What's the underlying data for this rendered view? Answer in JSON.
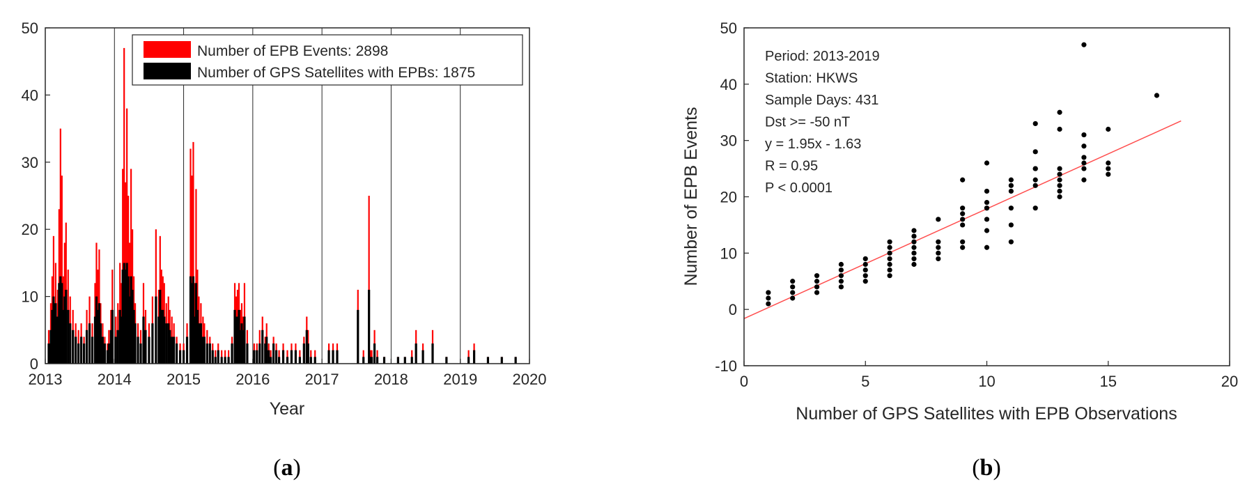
{
  "panels": [
    {
      "label_open": "(",
      "label_letter": "a",
      "label_close": ")"
    },
    {
      "label_open": "(",
      "label_letter": "b",
      "label_close": ")"
    }
  ],
  "chart_data": [
    {
      "type": "bar",
      "panel": "a",
      "title": "",
      "xlabel": "Year",
      "ylabel": "",
      "xlim": [
        2013,
        2020
      ],
      "ylim": [
        0,
        50
      ],
      "xticks": [
        2013,
        2014,
        2015,
        2016,
        2017,
        2018,
        2019,
        2020
      ],
      "yticks": [
        0,
        10,
        20,
        30,
        40,
        50
      ],
      "year_dividers": [
        2014,
        2015,
        2016,
        2017,
        2018,
        2019
      ],
      "legend": {
        "placement": "top-right",
        "entries": [
          {
            "name": "Number of EPB Events: 2898",
            "color": "#ff0000"
          },
          {
            "name": "Number of GPS Satellites with EPBs: 1875",
            "color": "#000000"
          }
        ]
      },
      "series": [
        {
          "name": "Number of EPB Events",
          "color": "#ff0000",
          "x": [
            2013.05,
            2013.08,
            2013.1,
            2013.12,
            2013.15,
            2013.18,
            2013.2,
            2013.22,
            2013.24,
            2013.26,
            2013.28,
            2013.3,
            2013.33,
            2013.36,
            2013.4,
            2013.44,
            2013.48,
            2013.52,
            2013.56,
            2013.6,
            2013.64,
            2013.68,
            2013.72,
            2013.74,
            2013.76,
            2013.78,
            2013.8,
            2013.83,
            2013.86,
            2013.9,
            2013.92,
            2013.95,
            2013.97,
            2014.02,
            2014.05,
            2014.08,
            2014.1,
            2014.12,
            2014.14,
            2014.16,
            2014.18,
            2014.2,
            2014.22,
            2014.24,
            2014.26,
            2014.28,
            2014.3,
            2014.34,
            2014.38,
            2014.42,
            2014.45,
            2014.5,
            2014.55,
            2014.6,
            2014.64,
            2014.66,
            2014.68,
            2014.7,
            2014.72,
            2014.75,
            2014.78,
            2014.8,
            2014.83,
            2014.86,
            2014.9,
            2014.95,
            2015.0,
            2015.05,
            2015.1,
            2015.12,
            2015.14,
            2015.16,
            2015.18,
            2015.2,
            2015.22,
            2015.25,
            2015.28,
            2015.3,
            2015.34,
            2015.38,
            2015.42,
            2015.46,
            2015.5,
            2015.55,
            2015.6,
            2015.65,
            2015.7,
            2015.74,
            2015.76,
            2015.78,
            2015.8,
            2015.82,
            2015.84,
            2015.86,
            2015.88,
            2015.92,
            2016.02,
            2016.06,
            2016.1,
            2016.14,
            2016.18,
            2016.2,
            2016.23,
            2016.26,
            2016.3,
            2016.34,
            2016.38,
            2016.44,
            2016.5,
            2016.56,
            2016.62,
            2016.68,
            2016.74,
            2016.78,
            2016.8,
            2016.84,
            2016.9,
            2017.1,
            2017.16,
            2017.22,
            2017.52,
            2017.6,
            2017.68,
            2017.7,
            2017.72,
            2017.76,
            2017.8,
            2017.9,
            2018.1,
            2018.2,
            2018.3,
            2018.36,
            2018.46,
            2018.6,
            2018.8,
            2019.12,
            2019.2,
            2019.4,
            2019.6,
            2019.8
          ],
          "values": [
            5,
            9,
            13,
            19,
            15,
            11,
            23,
            35,
            28,
            13,
            18,
            21,
            14,
            10,
            8,
            6,
            5,
            6,
            4,
            8,
            10,
            6,
            12,
            18,
            14,
            17,
            9,
            6,
            4,
            3,
            5,
            8,
            14,
            7,
            9,
            15,
            12,
            29,
            47,
            27,
            38,
            25,
            18,
            29,
            20,
            13,
            9,
            6,
            5,
            12,
            8,
            6,
            10,
            20,
            11,
            19,
            14,
            13,
            12,
            9,
            10,
            8,
            7,
            6,
            4,
            3,
            3,
            6,
            32,
            28,
            33,
            12,
            26,
            14,
            10,
            9,
            7,
            6,
            5,
            4,
            3,
            2,
            3,
            2,
            2,
            2,
            4,
            12,
            10,
            11,
            12,
            8,
            9,
            7,
            12,
            5,
            3,
            3,
            5,
            7,
            4,
            6,
            3,
            2,
            4,
            3,
            2,
            3,
            2,
            3,
            3,
            2,
            4,
            7,
            5,
            2,
            2,
            3,
            3,
            3,
            11,
            2,
            25,
            2,
            2,
            5,
            2,
            1,
            1,
            1,
            2,
            5,
            3,
            5,
            1,
            2,
            3,
            1,
            1,
            1
          ]
        },
        {
          "name": "Number of GPS Satellites with EPBs",
          "color": "#000000",
          "x": [
            2013.05,
            2013.08,
            2013.1,
            2013.12,
            2013.15,
            2013.18,
            2013.2,
            2013.22,
            2013.24,
            2013.26,
            2013.28,
            2013.3,
            2013.33,
            2013.36,
            2013.4,
            2013.44,
            2013.48,
            2013.52,
            2013.56,
            2013.6,
            2013.64,
            2013.68,
            2013.72,
            2013.74,
            2013.76,
            2013.78,
            2013.8,
            2013.83,
            2013.86,
            2013.9,
            2013.92,
            2013.95,
            2013.97,
            2014.02,
            2014.05,
            2014.08,
            2014.1,
            2014.12,
            2014.14,
            2014.16,
            2014.18,
            2014.2,
            2014.22,
            2014.24,
            2014.26,
            2014.28,
            2014.3,
            2014.34,
            2014.38,
            2014.42,
            2014.45,
            2014.5,
            2014.55,
            2014.6,
            2014.64,
            2014.66,
            2014.68,
            2014.7,
            2014.72,
            2014.75,
            2014.78,
            2014.8,
            2014.83,
            2014.86,
            2014.9,
            2014.95,
            2015.0,
            2015.05,
            2015.1,
            2015.12,
            2015.14,
            2015.16,
            2015.18,
            2015.2,
            2015.22,
            2015.25,
            2015.28,
            2015.3,
            2015.34,
            2015.38,
            2015.42,
            2015.46,
            2015.5,
            2015.55,
            2015.6,
            2015.65,
            2015.7,
            2015.74,
            2015.76,
            2015.78,
            2015.8,
            2015.82,
            2015.84,
            2015.86,
            2015.88,
            2015.92,
            2016.02,
            2016.06,
            2016.1,
            2016.14,
            2016.18,
            2016.2,
            2016.23,
            2016.26,
            2016.3,
            2016.34,
            2016.38,
            2016.44,
            2016.5,
            2016.56,
            2016.62,
            2016.68,
            2016.74,
            2016.78,
            2016.8,
            2016.84,
            2016.9,
            2017.1,
            2017.16,
            2017.22,
            2017.52,
            2017.6,
            2017.68,
            2017.7,
            2017.72,
            2017.76,
            2017.8,
            2017.9,
            2018.1,
            2018.2,
            2018.3,
            2018.36,
            2018.46,
            2018.6,
            2018.8,
            2019.12,
            2019.2,
            2019.4,
            2019.6,
            2019.8
          ],
          "values": [
            3,
            5,
            8,
            10,
            9,
            7,
            12,
            13,
            12,
            8,
            10,
            11,
            8,
            6,
            5,
            4,
            3,
            4,
            3,
            5,
            6,
            4,
            7,
            10,
            8,
            9,
            6,
            4,
            3,
            2,
            3,
            5,
            8,
            4,
            5,
            8,
            7,
            14,
            15,
            14,
            15,
            13,
            10,
            13,
            11,
            8,
            6,
            4,
            3,
            7,
            5,
            4,
            6,
            10,
            7,
            11,
            8,
            8,
            7,
            6,
            6,
            5,
            4,
            4,
            3,
            2,
            2,
            4,
            13,
            12,
            13,
            7,
            12,
            8,
            6,
            6,
            4,
            4,
            3,
            3,
            2,
            1,
            2,
            1,
            1,
            1,
            3,
            8,
            7,
            7,
            8,
            5,
            6,
            5,
            7,
            3,
            2,
            2,
            3,
            5,
            3,
            4,
            2,
            1,
            3,
            2,
            1,
            2,
            1,
            2,
            2,
            1,
            3,
            5,
            3,
            1,
            1,
            2,
            2,
            2,
            8,
            1,
            11,
            1,
            1,
            3,
            1,
            1,
            1,
            1,
            1,
            3,
            2,
            3,
            1,
            1,
            2,
            1,
            1,
            1
          ]
        }
      ]
    },
    {
      "type": "scatter",
      "panel": "b",
      "title": "",
      "xlabel": "Number of GPS Satellites with EPB Observations",
      "ylabel": "Number of EPB Events",
      "xlim": [
        0,
        20
      ],
      "ylim": [
        -10,
        50
      ],
      "xticks": [
        0,
        5,
        10,
        15,
        20
      ],
      "yticks": [
        -10,
        0,
        10,
        20,
        30,
        40,
        50
      ],
      "annotations": [
        "Period: 2013-2019",
        "Station: HKWS",
        "Sample Days: 431",
        "Dst >= -50 nT",
        "y = 1.95x - 1.63",
        "R = 0.95",
        "P < 0.0001"
      ],
      "fit": {
        "slope": 1.95,
        "intercept": -1.63,
        "x_range": [
          0,
          18
        ],
        "color": "#ff4d4d"
      },
      "points": {
        "x": [
          1,
          1,
          1,
          2,
          2,
          2,
          2,
          3,
          3,
          3,
          3,
          4,
          4,
          4,
          4,
          4,
          5,
          5,
          5,
          5,
          5,
          6,
          6,
          6,
          6,
          6,
          6,
          6,
          7,
          7,
          7,
          7,
          7,
          7,
          7,
          8,
          8,
          8,
          8,
          8,
          9,
          9,
          9,
          9,
          9,
          9,
          9,
          10,
          10,
          10,
          10,
          10,
          10,
          10,
          10,
          11,
          11,
          11,
          11,
          11,
          11,
          12,
          12,
          12,
          12,
          12,
          12,
          12,
          13,
          13,
          13,
          13,
          13,
          13,
          13,
          13,
          14,
          14,
          14,
          14,
          14,
          14,
          14,
          15,
          15,
          15,
          15,
          17
        ],
        "y": [
          1,
          2,
          3,
          2,
          3,
          4,
          5,
          3,
          4,
          5,
          6,
          4,
          5,
          6,
          7,
          8,
          5,
          6,
          7,
          8,
          9,
          6,
          7,
          8,
          9,
          10,
          11,
          12,
          8,
          9,
          10,
          11,
          12,
          13,
          14,
          9,
          10,
          11,
          12,
          16,
          11,
          12,
          15,
          16,
          17,
          18,
          23,
          11,
          14,
          16,
          18,
          19,
          21,
          26,
          18,
          12,
          15,
          18,
          21,
          22,
          23,
          18,
          22,
          23,
          25,
          28,
          33,
          25,
          20,
          21,
          22,
          23,
          24,
          25,
          32,
          35,
          23,
          25,
          27,
          29,
          31,
          47,
          26,
          24,
          25,
          26,
          32,
          38
        ]
      },
      "point_color": "#000000"
    }
  ]
}
